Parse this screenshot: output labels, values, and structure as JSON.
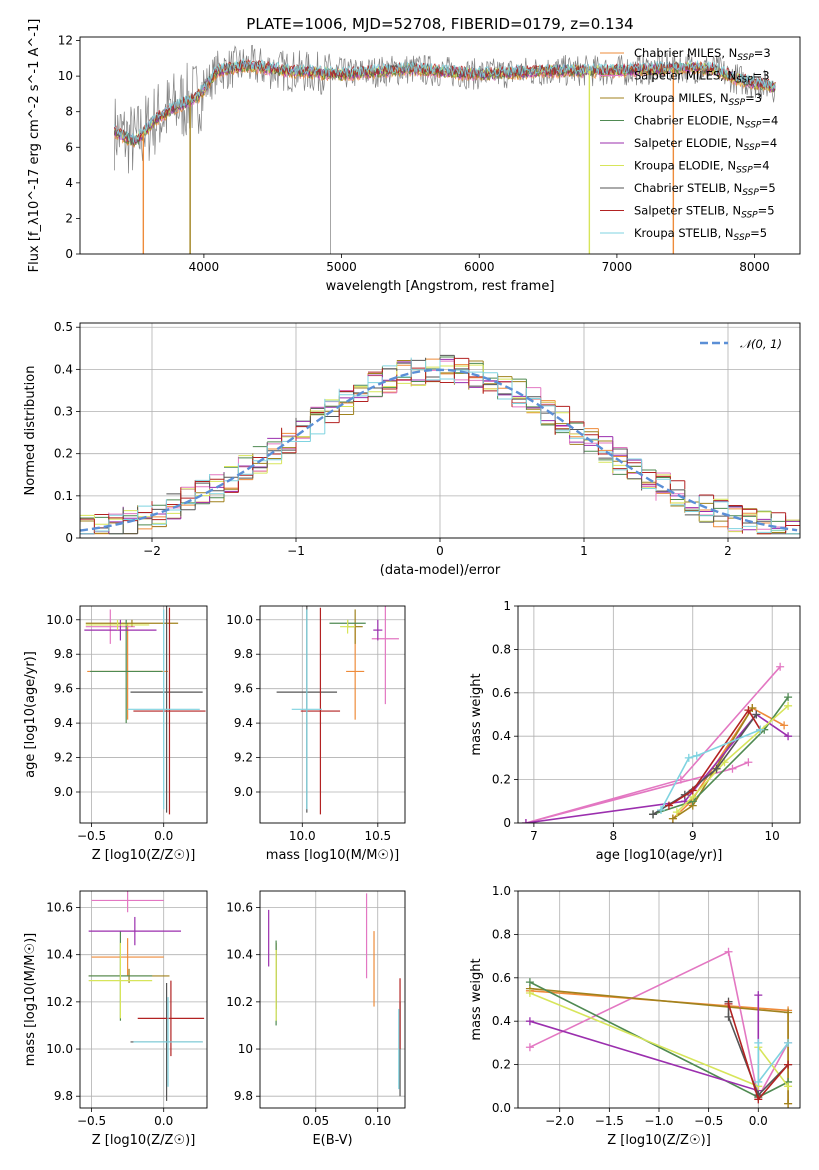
{
  "title": "PLATE=1006, MJD=52708, FIBERID=0179, z=0.134",
  "colors": {
    "model": [
      "#ee8b3a",
      "#e377c2",
      "#a0821d",
      "#4f8a52",
      "#9b2fae",
      "#d7e55a",
      "#555555",
      "#b22222",
      "#7fd3e0"
    ],
    "data": "#808080",
    "gauss": "#5b8fd6"
  },
  "legend": [
    "Chabrier MILES, N_SSP=3",
    "Salpeter MILES, N_SSP=3",
    "Kroupa MILES, N_SSP=3",
    "Chabrier ELODIE, N_SSP=4",
    "Salpeter ELODIE, N_SSP=4",
    "Kroupa ELODIE, N_SSP=4",
    "Chabrier STELIB, N_SSP=5",
    "Salpeter STELIB, N_SSP=5",
    "Kroupa STELIB, N_SSP=5"
  ],
  "chart_data": [
    {
      "id": "spectrum",
      "type": "line",
      "xlabel": "wavelength [Angstrom, rest frame]",
      "ylabel": "Flux [f_λ10^-17 erg cm^-2 s^-1 A^-1]",
      "xlim": [
        3100,
        8330
      ],
      "ylim": [
        0,
        12.2
      ],
      "xticks": [
        4000,
        5000,
        6000,
        7000,
        8000
      ],
      "yticks": [
        0,
        2,
        4,
        6,
        8,
        10,
        12
      ],
      "continuum": [
        [
          3350,
          6.9
        ],
        [
          3500,
          6.3
        ],
        [
          3650,
          7.6
        ],
        [
          3800,
          8.3
        ],
        [
          3950,
          8.8
        ],
        [
          4100,
          10.3
        ],
        [
          4300,
          10.6
        ],
        [
          4600,
          10.3
        ],
        [
          5000,
          10.1
        ],
        [
          5500,
          10.4
        ],
        [
          6000,
          10.1
        ],
        [
          6500,
          10.3
        ],
        [
          7000,
          10.3
        ],
        [
          7500,
          10.5
        ],
        [
          7700,
          10.4
        ],
        [
          7850,
          9.9
        ],
        [
          8000,
          9.6
        ],
        [
          8150,
          9.4
        ]
      ],
      "drops": [
        [
          3560,
          0,
          "#ee8b3a"
        ],
        [
          3900,
          0,
          "#a0821d"
        ],
        [
          6800,
          0,
          "#d7e55a"
        ],
        [
          7410,
          0,
          "#ee8b3a"
        ]
      ],
      "grid": false
    },
    {
      "id": "residuals",
      "type": "histogram",
      "xlabel": "(data-model)/error",
      "ylabel": "Normed distribution",
      "xlim": [
        -2.5,
        2.5
      ],
      "ylim": [
        0,
        0.51
      ],
      "xticks": [
        -2,
        -1,
        0,
        1,
        2
      ],
      "yticks": [
        0.0,
        0.1,
        0.2,
        0.3,
        0.4,
        0.5
      ],
      "legend_entry": "𝒩(0, 1)",
      "legend_position": "top-right",
      "grid": true
    },
    {
      "id": "age-vs-Z",
      "type": "errorbar",
      "xlabel": "Z [log10(Z/Z☉)]",
      "ylabel": "age  [log10(age/yr)]",
      "xlim": [
        -0.58,
        0.3
      ],
      "ylim": [
        8.82,
        10.08
      ],
      "xticks": [
        -0.5,
        0.0
      ],
      "yticks": [
        9.0,
        9.2,
        9.4,
        9.6,
        9.8,
        10.0
      ],
      "points": [
        {
          "x": -0.25,
          "y": 9.7,
          "xerr": 0.28,
          "yerr": 0.28
        },
        {
          "x": -0.37,
          "y": 9.96,
          "xerr": 0.17,
          "yerr": 0.1
        },
        {
          "x": -0.22,
          "y": 9.98,
          "xerr": 0.32,
          "yerr": 0.02
        },
        {
          "x": -0.26,
          "y": 9.7,
          "xerr": 0.25,
          "yerr": 0.3
        },
        {
          "x": -0.3,
          "y": 9.94,
          "xerr": 0.25,
          "yerr": 0.06
        },
        {
          "x": -0.32,
          "y": 9.97,
          "xerr": 0.22,
          "yerr": 0.03
        },
        {
          "x": 0.02,
          "y": 9.58,
          "xerr": 0.25,
          "yerr": 0.7
        },
        {
          "x": 0.04,
          "y": 9.47,
          "xerr": 0.25,
          "yerr": 0.6
        },
        {
          "x": 0.0,
          "y": 9.48,
          "xerr": 0.25,
          "yerr": 0.58
        }
      ],
      "grid": true
    },
    {
      "id": "age-vs-mass",
      "type": "errorbar",
      "xlabel": "mass [log10(M/M☉)]",
      "ylabel": "",
      "xlim": [
        9.72,
        10.68
      ],
      "ylim": [
        8.82,
        10.08
      ],
      "xticks": [
        10.0,
        10.5
      ],
      "yticks": [
        9.0,
        9.2,
        9.4,
        9.6,
        9.8,
        10.0
      ],
      "points": [
        {
          "x": 10.35,
          "y": 9.7,
          "xerr": 0.06,
          "yerr": 0.28
        },
        {
          "x": 10.55,
          "y": 9.89,
          "xerr": 0.09,
          "yerr": 0.38
        },
        {
          "x": 10.35,
          "y": 9.96,
          "xerr": 0.05,
          "yerr": 0.1
        },
        {
          "x": 10.3,
          "y": 9.98,
          "xerr": 0.12,
          "yerr": 0.02
        },
        {
          "x": 10.5,
          "y": 9.94,
          "xerr": 0.03,
          "yerr": 0.06
        },
        {
          "x": 10.3,
          "y": 9.96,
          "xerr": 0.05,
          "yerr": 0.04
        },
        {
          "x": 10.03,
          "y": 9.58,
          "xerr": 0.2,
          "yerr": 0.7
        },
        {
          "x": 10.12,
          "y": 9.47,
          "xerr": 0.13,
          "yerr": 0.6
        },
        {
          "x": 10.03,
          "y": 9.48,
          "xerr": 0.1,
          "yerr": 0.58
        }
      ],
      "grid": true
    },
    {
      "id": "mass-weight-vs-age",
      "type": "line",
      "xlabel": "age  [log10(age/yr)]",
      "ylabel": "mass weight",
      "xlim": [
        6.8,
        10.35
      ],
      "ylim": [
        0,
        1.0
      ],
      "xticks": [
        7,
        8,
        9,
        10
      ],
      "yticks": [
        0.0,
        0.2,
        0.4,
        0.6,
        0.8,
        1.0
      ],
      "series": [
        {
          "values": [
            [
              8.75,
              0.02
            ],
            [
              8.98,
              0.1
            ],
            [
              9.75,
              0.53
            ],
            [
              10.15,
              0.45
            ]
          ]
        },
        {
          "values": [
            [
              10.1,
              0.72
            ],
            [
              8.85,
              0.2
            ],
            [
              6.9,
              0.0
            ],
            [
              9.5,
              0.25
            ],
            [
              9.7,
              0.28
            ]
          ]
        },
        {
          "values": [
            [
              8.75,
              0.02
            ],
            [
              9.0,
              0.08
            ],
            [
              9.75,
              0.53
            ]
          ]
        },
        {
          "values": [
            [
              8.5,
              0.04
            ],
            [
              9.0,
              0.1
            ],
            [
              9.9,
              0.43
            ],
            [
              10.2,
              0.58
            ]
          ]
        },
        {
          "values": [
            [
              6.9,
              0.0
            ],
            [
              8.9,
              0.1
            ],
            [
              9.8,
              0.5
            ],
            [
              10.2,
              0.4
            ]
          ]
        },
        {
          "values": [
            [
              8.8,
              0.05
            ],
            [
              9.0,
              0.12
            ],
            [
              9.4,
              0.28
            ],
            [
              10.2,
              0.54
            ]
          ]
        },
        {
          "values": [
            [
              8.5,
              0.04
            ],
            [
              8.9,
              0.13
            ],
            [
              9.3,
              0.25
            ],
            [
              9.8,
              0.5
            ]
          ]
        },
        {
          "values": [
            [
              8.7,
              0.08
            ],
            [
              9.0,
              0.15
            ],
            [
              9.7,
              0.52
            ],
            [
              9.85,
              0.43
            ]
          ]
        },
        {
          "values": [
            [
              8.6,
              0.06
            ],
            [
              8.95,
              0.3
            ],
            [
              9.05,
              0.31
            ],
            [
              9.85,
              0.43
            ]
          ]
        }
      ],
      "grid": true
    },
    {
      "id": "mass-vs-Z",
      "type": "errorbar",
      "xlabel": "Z [log10(Z/Z☉)]",
      "ylabel": "mass [log10(M/M☉)]",
      "xlim": [
        -0.58,
        0.3
      ],
      "ylim": [
        9.75,
        10.67
      ],
      "xticks": [
        -0.5,
        0.0
      ],
      "yticks": [
        9.8,
        10.0,
        10.2,
        10.4,
        10.6
      ],
      "points": [
        {
          "x": -0.25,
          "y": 10.39,
          "xerr": 0.25,
          "yerr": 0.08
        },
        {
          "x": -0.25,
          "y": 10.63,
          "xerr": 0.25,
          "yerr": 0.05
        },
        {
          "x": -0.24,
          "y": 10.31,
          "xerr": 0.28,
          "yerr": 0.03
        },
        {
          "x": -0.3,
          "y": 10.31,
          "xerr": 0.22,
          "yerr": 0.19
        },
        {
          "x": -0.2,
          "y": 10.5,
          "xerr": 0.32,
          "yerr": 0.06
        },
        {
          "x": -0.3,
          "y": 10.29,
          "xerr": 0.22,
          "yerr": 0.16
        },
        {
          "x": 0.02,
          "y": 10.03,
          "xerr": 0.25,
          "yerr": 0.25
        },
        {
          "x": 0.05,
          "y": 10.13,
          "xerr": 0.23,
          "yerr": 0.16
        },
        {
          "x": 0.03,
          "y": 10.03,
          "xerr": 0.24,
          "yerr": 0.19
        }
      ],
      "grid": true
    },
    {
      "id": "mass-vs-EBV",
      "type": "errorbar",
      "xlabel": "E(B-V)",
      "ylabel": "",
      "xlim": [
        0.005,
        0.122
      ],
      "ylim": [
        9.75,
        10.67
      ],
      "xticks": [
        0.05,
        0.1
      ],
      "yticks": [
        9.8,
        10.0,
        10.2,
        10.4,
        10.6
      ],
      "points": [
        {
          "x": 0.097,
          "y": 10.34,
          "xerr": 0.0,
          "yerr": 0.16
        },
        {
          "x": 0.091,
          "y": 10.48,
          "xerr": 0.0,
          "yerr": 0.18
        },
        {
          "x": 0.018,
          "y": 10.31,
          "xerr": 0.0,
          "yerr": 0.14
        },
        {
          "x": 0.018,
          "y": 10.28,
          "xerr": 0.0,
          "yerr": 0.18
        },
        {
          "x": 0.012,
          "y": 10.47,
          "xerr": 0.0,
          "yerr": 0.12
        },
        {
          "x": 0.018,
          "y": 10.27,
          "xerr": 0.0,
          "yerr": 0.15
        },
        {
          "x": 0.118,
          "y": 10.0,
          "xerr": 0.0,
          "yerr": 0.2
        },
        {
          "x": 0.118,
          "y": 10.15,
          "xerr": 0.0,
          "yerr": 0.15
        },
        {
          "x": 0.117,
          "y": 10.0,
          "xerr": 0.0,
          "yerr": 0.17
        }
      ],
      "grid": true
    },
    {
      "id": "mass-weight-vs-Z",
      "type": "line",
      "xlabel": "Z [log10(Z/Z☉)]",
      "ylabel": "mass weight",
      "xlim": [
        -2.42,
        0.42
      ],
      "ylim": [
        0,
        1.0
      ],
      "xticks": [
        -2.0,
        -1.5,
        -1.0,
        -0.5,
        0.0
      ],
      "yticks": [
        0.0,
        0.2,
        0.4,
        0.6,
        0.8,
        1.0
      ],
      "series": [
        {
          "values": [
            [
              -2.3,
              0.54
            ],
            [
              0.3,
              0.45
            ],
            [
              0.3,
              0.02
            ]
          ]
        },
        {
          "values": [
            [
              -2.3,
              0.28
            ],
            [
              -0.3,
              0.72
            ],
            [
              0.0,
              0.05
            ],
            [
              0.3,
              0.3
            ]
          ]
        },
        {
          "values": [
            [
              -2.3,
              0.55
            ],
            [
              0.3,
              0.44
            ],
            [
              0.3,
              0.02
            ]
          ]
        },
        {
          "values": [
            [
              -2.3,
              0.58
            ],
            [
              0.0,
              0.05
            ],
            [
              0.3,
              0.12
            ]
          ]
        },
        {
          "values": [
            [
              -2.3,
              0.4
            ],
            [
              0.0,
              0.08
            ],
            [
              0.0,
              0.52
            ]
          ]
        },
        {
          "values": [
            [
              -2.3,
              0.53
            ],
            [
              0.0,
              0.1
            ],
            [
              0.0,
              0.28
            ],
            [
              0.3,
              0.1
            ]
          ]
        },
        {
          "values": [
            [
              -0.3,
              0.49
            ],
            [
              -0.3,
              0.42
            ],
            [
              0.0,
              0.06
            ],
            [
              0.3,
              0.2
            ]
          ]
        },
        {
          "values": [
            [
              -0.3,
              0.48
            ],
            [
              0.0,
              0.04
            ],
            [
              0.3,
              0.2
            ]
          ]
        },
        {
          "values": [
            [
              0.0,
              0.3
            ],
            [
              0.0,
              0.12
            ],
            [
              0.3,
              0.3
            ]
          ]
        }
      ],
      "grid": true
    }
  ]
}
